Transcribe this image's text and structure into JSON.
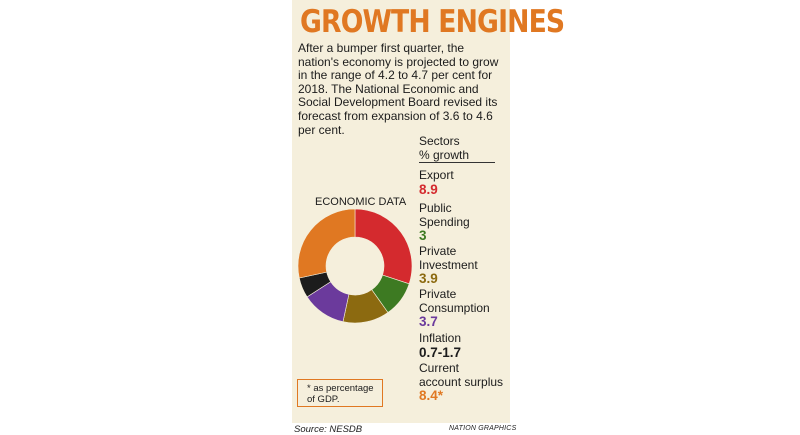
{
  "title": "GROWTH ENGINES",
  "intro": "After a bumper first quarter, the nation's economy is projected to grow in the range of 4.2 to 4.7 per cent for 2018. The National Economic and Social Development Board revised its forecast from expansion of 3.6 to 4.6 per cent.",
  "sectors_header_line1": "Sectors",
  "sectors_header_line2": "% growth",
  "sectors": [
    {
      "label_lines": [
        "Export"
      ],
      "value": "8.9",
      "color": "#d42a2e"
    },
    {
      "label_lines": [
        "Public",
        "Spending"
      ],
      "value": "3",
      "color": "#3d7a22"
    },
    {
      "label_lines": [
        "Private",
        "Investment"
      ],
      "value": "3.9",
      "color": "#8c6a10"
    },
    {
      "label_lines": [
        "Private",
        "Consumption"
      ],
      "value": "3.7",
      "color": "#6b3a9c"
    },
    {
      "label_lines": [
        "Inflation"
      ],
      "value": "0.7-1.7",
      "color": "#1c1c1c"
    },
    {
      "label_lines": [
        "Current",
        "account surplus"
      ],
      "value": "8.4*",
      "color": "#e07822"
    }
  ],
  "chart_data": {
    "type": "pie",
    "title": "ECONOMIC DATA",
    "categories": [
      "Export",
      "Public Spending",
      "Private Investment",
      "Private Consumption",
      "Inflation",
      "Current account surplus"
    ],
    "values": [
      8.9,
      3,
      3.9,
      3.7,
      1.7,
      8.4
    ],
    "colors": [
      "#d42a2e",
      "#3d7a22",
      "#8c6a10",
      "#6b3a9c",
      "#1c1c1c",
      "#e07822"
    ]
  },
  "note": "* as percentage of GDP.",
  "source": "Source: NESDB",
  "credit": "NATION GRAPHICS"
}
